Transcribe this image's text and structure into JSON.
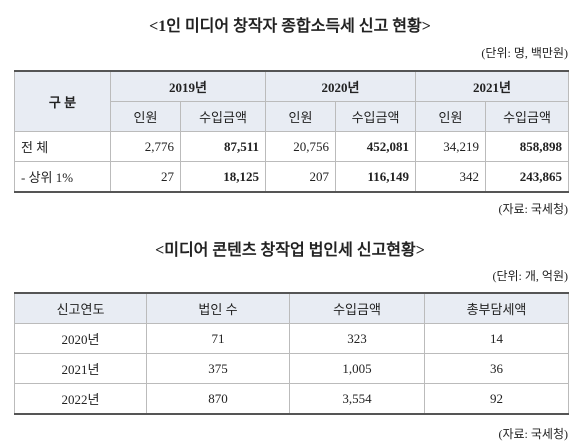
{
  "title1": "<1인 미디어 창작자 종합소득세 신고 현황>",
  "table1": {
    "unit": "(단위: 명, 백만원)",
    "header_group": "구 분",
    "years": [
      "2019년",
      "2020년",
      "2021년"
    ],
    "sub_headers": [
      "인원",
      "수입금액",
      "인원",
      "수입금액",
      "인원",
      "수입금액"
    ],
    "rows": [
      [
        "전 체",
        "2,776",
        "87,511",
        "20,756",
        "452,081",
        "34,219",
        "858,898"
      ],
      [
        "- 상위 1%",
        "27",
        "18,125",
        "207",
        "116,149",
        "342",
        "243,865"
      ]
    ],
    "source": "(자료: 국세청)"
  },
  "title2": "<미디어 콘텐츠 창작업 법인세 신고현황>",
  "table2": {
    "unit": "(단위: 개, 억원)",
    "header": [
      "신고연도",
      "법인 수",
      "수입금액",
      "총부담세액"
    ],
    "rows": [
      [
        "2020년",
        "71",
        "323",
        "14"
      ],
      [
        "2021년",
        "375",
        "1,005",
        "36"
      ],
      [
        "2022년",
        "870",
        "3,554",
        "92"
      ]
    ],
    "source": "(자료: 국세청)"
  }
}
